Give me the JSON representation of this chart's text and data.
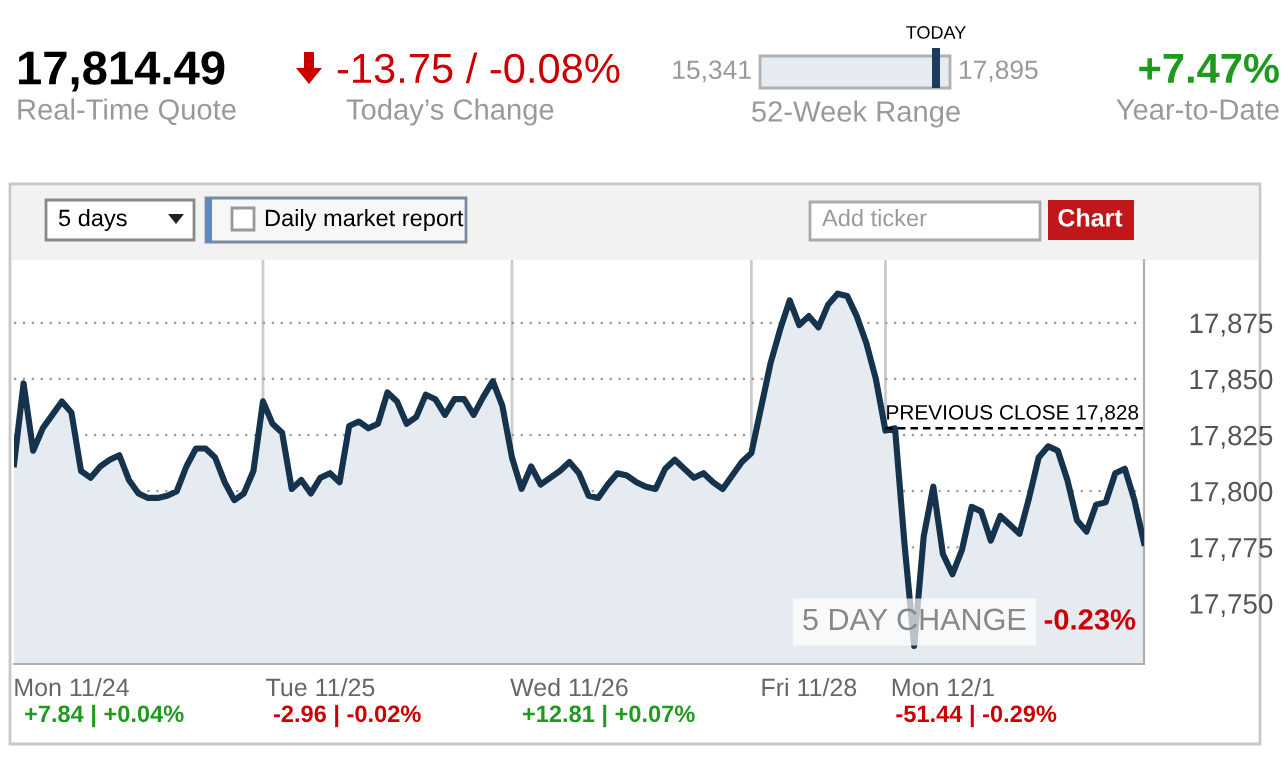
{
  "chart_data": {
    "type": "area",
    "annotations": [
      "17,814.49",
      "Real-Time Quote",
      "-13.75 / -0.08%",
      "Today’s Change",
      "15,341",
      "17,895",
      "TODAY",
      "52-Week Range",
      "+7.47%",
      "Year-to-Date",
      "5 days",
      "Daily market report",
      "Add ticker",
      "Chart",
      "5 DAY CHANGE",
      "-0.23%",
      "+7.84 | +0.04%",
      "-2.96 | -0.02%",
      "+12.81 | +0.07%",
      "-51.44 | -0.29%"
    ],
    "categories": [
      null,
      null,
      null,
      null,
      null,
      null,
      "Mon 11/24",
      null,
      null,
      null,
      null,
      null,
      null,
      null,
      null,
      null,
      null,
      null,
      null,
      null,
      null,
      null,
      null,
      null,
      null,
      null,
      null,
      null,
      null,
      null,
      null,
      null,
      "Tue 11/25",
      null,
      null,
      null,
      null,
      null,
      null,
      null,
      null,
      null,
      null,
      null,
      null,
      null,
      null,
      null,
      null,
      null,
      null,
      null,
      null,
      null,
      null,
      null,
      null,
      null,
      "Wed 11/26",
      null,
      null,
      null,
      null,
      null,
      null,
      null,
      null,
      null,
      null,
      null,
      null,
      null,
      null,
      null,
      null,
      null,
      null,
      null,
      null,
      null,
      null,
      null,
      null,
      "Fri 11/28",
      null,
      null,
      null,
      null,
      null,
      null,
      null,
      null,
      null,
      null,
      null,
      null,
      null,
      "Mon 12/1",
      null,
      null,
      null,
      null,
      null,
      null,
      null,
      null,
      null,
      null,
      null,
      null,
      null,
      null,
      null,
      null,
      null,
      null,
      null,
      null,
      null
    ],
    "series": [
      {
        "color": "#15334d",
        "values": [
          17812,
          17848,
          17818,
          17828,
          17834,
          17840,
          17835,
          17809,
          17806,
          17811,
          17814,
          17816,
          17805,
          17799,
          17797,
          17797,
          17798,
          17800,
          17811,
          17819,
          17819,
          17815,
          17804,
          17796,
          17799,
          17809,
          17840,
          17830,
          17826,
          17801,
          17805,
          17799,
          17806,
          17808,
          17804,
          17829,
          17831,
          17828,
          17830,
          17844,
          17840,
          17830,
          17833,
          17843,
          17841,
          17834,
          17841,
          17841,
          17834,
          17842,
          17849,
          17838,
          17815,
          17801,
          17811,
          17803,
          17806,
          17809,
          17813,
          17808,
          17798,
          17797,
          17803,
          17808,
          17807,
          17804,
          17802,
          17801,
          17810,
          17814,
          17810,
          17806,
          17808,
          17804,
          17801,
          17807,
          17813,
          17817,
          17837,
          17857,
          17872,
          17885,
          17874,
          17878,
          17873,
          17883,
          17888,
          17887,
          17878,
          17866,
          17850,
          17827,
          17828,
          17776,
          17731,
          17780,
          17802,
          17772,
          17763,
          17774,
          17793,
          17791,
          17778,
          17789,
          17785,
          17781,
          17797,
          17815,
          17820,
          17818,
          17805,
          17787,
          17782,
          17794,
          17795,
          17808,
          17810,
          17796,
          17777
        ]
      }
    ],
    "ylim": [
      17723,
      17903
    ],
    "yticks": [
      {
        "value": 17750,
        "label": "17,750"
      },
      {
        "value": 17775,
        "label": "17,775"
      },
      {
        "value": 17800,
        "label": "17,800"
      },
      {
        "value": 17825,
        "label": "17,825"
      },
      {
        "value": 17850,
        "label": "17,850"
      },
      {
        "value": 17875,
        "label": "17,875"
      }
    ],
    "ref_lines": [
      {
        "axis": "y",
        "value": 17828,
        "label": "PREVIOUS CLOSE 17,828",
        "color": "#000000",
        "line_style": "dashed"
      }
    ],
    "grid": true
  }
}
